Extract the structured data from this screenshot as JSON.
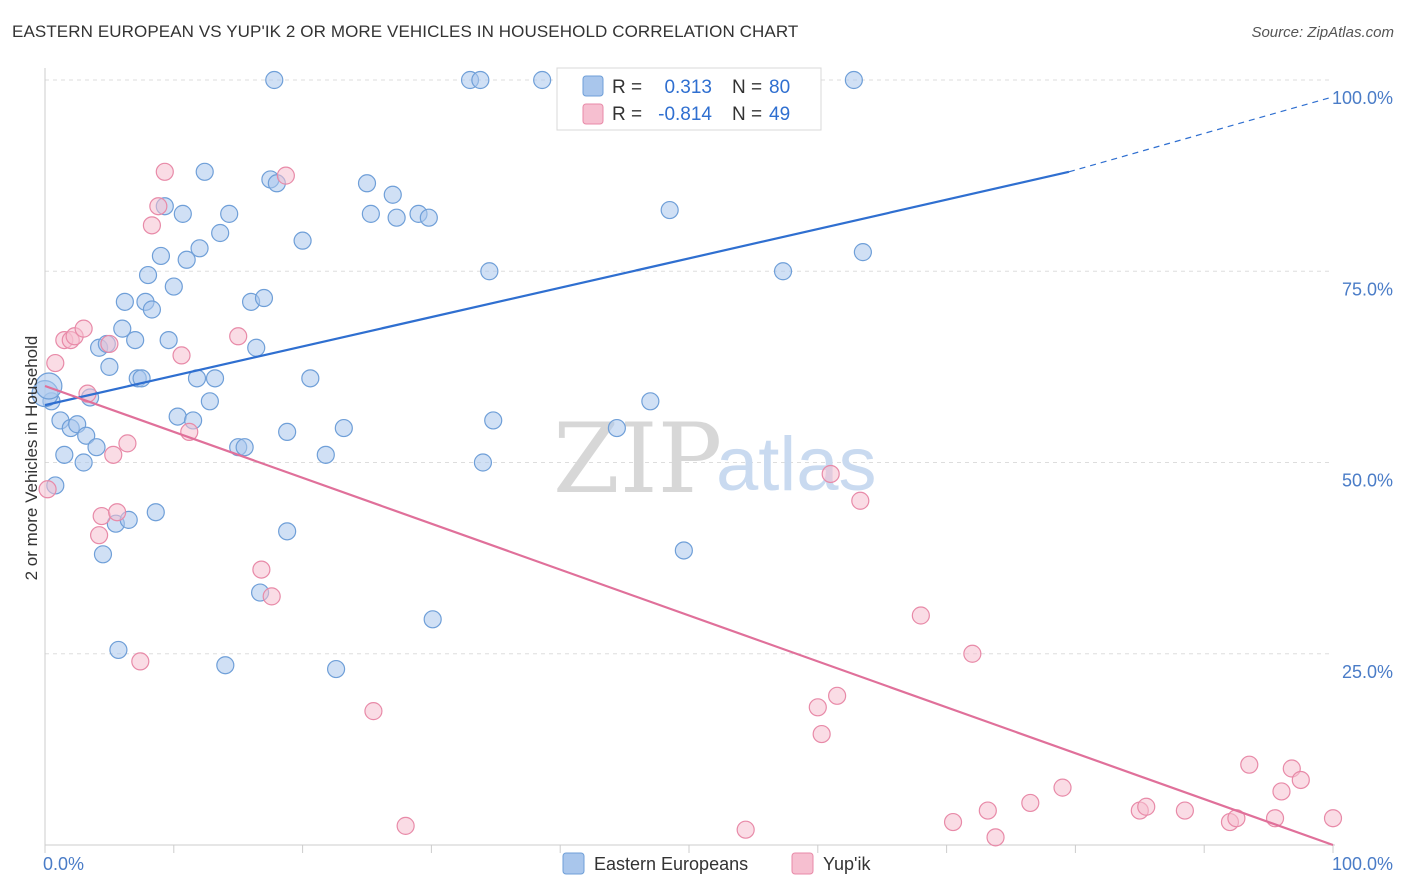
{
  "title": "EASTERN EUROPEAN VS YUP'IK 2 OR MORE VEHICLES IN HOUSEHOLD CORRELATION CHART",
  "source": "Source: ZipAtlas.com",
  "watermark": {
    "zip": "ZIP",
    "atlas": "atlas"
  },
  "colors": {
    "blue_fill": "#a9c6ec",
    "blue_stroke": "#6f9fd8",
    "blue_line": "#2f6fd0",
    "pink_fill": "#f6bfd0",
    "pink_stroke": "#e88aa8",
    "pink_line": "#e0709a",
    "grid": "#dddddd",
    "tick_text": "#4a7cc7"
  },
  "legend": {
    "rows": [
      {
        "r_label": "R =",
        "r_value": "0.313",
        "n_label": "N =",
        "n_value": "80"
      },
      {
        "r_label": "R =",
        "r_value": "-0.814",
        "n_label": "N =",
        "n_value": "49"
      }
    ]
  },
  "chart_data": {
    "type": "scatter",
    "title": "EASTERN EUROPEAN VS YUP'IK 2 OR MORE VEHICLES IN HOUSEHOLD CORRELATION CHART",
    "xlabel": "",
    "ylabel": "2 or more Vehicles in Household",
    "xlim": [
      0,
      100
    ],
    "ylim": [
      0,
      100
    ],
    "x_tick_labels": [
      "0.0%",
      "100.0%"
    ],
    "y_tick_labels": [
      "25.0%",
      "50.0%",
      "75.0%",
      "100.0%"
    ],
    "y_ticks": [
      25,
      50,
      75,
      100
    ],
    "grid": true,
    "legend_position": "top-center",
    "series": [
      {
        "name": "Eastern Europeans",
        "color": "#a9c6ec",
        "R": 0.313,
        "N": 80,
        "trend": {
          "x0": 0,
          "y0": 57.5,
          "x1": 79.5,
          "y1": 88.0,
          "dashed_to": [
            100,
            97.8
          ]
        },
        "points": [
          [
            0.5,
            58
          ],
          [
            0.8,
            47
          ],
          [
            1.2,
            55.5
          ],
          [
            1.5,
            51
          ],
          [
            2,
            54.5
          ],
          [
            2.5,
            55
          ],
          [
            3,
            50
          ],
          [
            3.2,
            53.5
          ],
          [
            3.5,
            58.5
          ],
          [
            4,
            52
          ],
          [
            4.2,
            65
          ],
          [
            4.5,
            38
          ],
          [
            4.8,
            65.5
          ],
          [
            5,
            62.5
          ],
          [
            5.5,
            42
          ],
          [
            5.7,
            25.5
          ],
          [
            6,
            67.5
          ],
          [
            6.2,
            71
          ],
          [
            6.5,
            42.5
          ],
          [
            7,
            66
          ],
          [
            7.2,
            61
          ],
          [
            7.5,
            61
          ],
          [
            7.8,
            71
          ],
          [
            8,
            74.5
          ],
          [
            8.3,
            70
          ],
          [
            8.6,
            43.5
          ],
          [
            9,
            77
          ],
          [
            9.3,
            83.5
          ],
          [
            9.6,
            66
          ],
          [
            10,
            73
          ],
          [
            10.3,
            56
          ],
          [
            10.7,
            82.5
          ],
          [
            11,
            76.5
          ],
          [
            11.5,
            55.5
          ],
          [
            11.8,
            61
          ],
          [
            12,
            78
          ],
          [
            12.4,
            88
          ],
          [
            12.8,
            58
          ],
          [
            13.2,
            61
          ],
          [
            13.6,
            80
          ],
          [
            14,
            23.5
          ],
          [
            14.3,
            82.5
          ],
          [
            15,
            52
          ],
          [
            15.5,
            52
          ],
          [
            16,
            71
          ],
          [
            16.4,
            65
          ],
          [
            16.7,
            33
          ],
          [
            17,
            71.5
          ],
          [
            17.5,
            87
          ],
          [
            18,
            86.5
          ],
          [
            17.8,
            100
          ],
          [
            18.8,
            54
          ],
          [
            18.8,
            41
          ],
          [
            20,
            79
          ],
          [
            20.6,
            61
          ],
          [
            21.8,
            51
          ],
          [
            22.6,
            23
          ],
          [
            23.2,
            54.5
          ],
          [
            25,
            86.5
          ],
          [
            25.3,
            82.5
          ],
          [
            27,
            85
          ],
          [
            27.3,
            82
          ],
          [
            29,
            82.5
          ],
          [
            29.8,
            82
          ],
          [
            30.1,
            29.5
          ],
          [
            33,
            100
          ],
          [
            33.8,
            100
          ],
          [
            34,
            50
          ],
          [
            34.5,
            75
          ],
          [
            34.8,
            55.5
          ],
          [
            38.6,
            100
          ],
          [
            44.4,
            54.5
          ],
          [
            47,
            58
          ],
          [
            48.5,
            83
          ],
          [
            49.6,
            38.5
          ],
          [
            57.3,
            75
          ],
          [
            62.8,
            100
          ],
          [
            63.5,
            77.5
          ],
          [
            0,
            59
          ],
          [
            0.3,
            60
          ]
        ]
      },
      {
        "name": "Yup'ik",
        "color": "#f6bfd0",
        "R": -0.814,
        "N": 49,
        "trend": {
          "x0": 0,
          "y0": 60.0,
          "x1": 100,
          "y1": 0.0
        },
        "points": [
          [
            0.2,
            46.5
          ],
          [
            0.8,
            63
          ],
          [
            1.5,
            66
          ],
          [
            2,
            66
          ],
          [
            2.3,
            66.5
          ],
          [
            3,
            67.5
          ],
          [
            3.3,
            59
          ],
          [
            4.2,
            40.5
          ],
          [
            4.4,
            43
          ],
          [
            5,
            65.5
          ],
          [
            5.3,
            51
          ],
          [
            5.6,
            43.5
          ],
          [
            6.4,
            52.5
          ],
          [
            7.4,
            24
          ],
          [
            8.3,
            81
          ],
          [
            8.8,
            83.5
          ],
          [
            9.3,
            88
          ],
          [
            10.6,
            64
          ],
          [
            11.2,
            54
          ],
          [
            15,
            66.5
          ],
          [
            16.8,
            36
          ],
          [
            17.6,
            32.5
          ],
          [
            18.7,
            87.5
          ],
          [
            25.5,
            17.5
          ],
          [
            28,
            2.5
          ],
          [
            54.4,
            2
          ],
          [
            60,
            18
          ],
          [
            60.3,
            14.5
          ],
          [
            61,
            48.5
          ],
          [
            61.5,
            19.5
          ],
          [
            63.3,
            45
          ],
          [
            68,
            30
          ],
          [
            70.5,
            3
          ],
          [
            72,
            25
          ],
          [
            73.2,
            4.5
          ],
          [
            73.8,
            1
          ],
          [
            76.5,
            5.5
          ],
          [
            79,
            7.5
          ],
          [
            85,
            4.5
          ],
          [
            85.5,
            5
          ],
          [
            88.5,
            4.5
          ],
          [
            92,
            3
          ],
          [
            92.5,
            3.5
          ],
          [
            93.5,
            10.5
          ],
          [
            95.5,
            3.5
          ],
          [
            96,
            7
          ],
          [
            96.8,
            10
          ],
          [
            97.5,
            8.5
          ],
          [
            100,
            3.5
          ]
        ]
      }
    ]
  }
}
